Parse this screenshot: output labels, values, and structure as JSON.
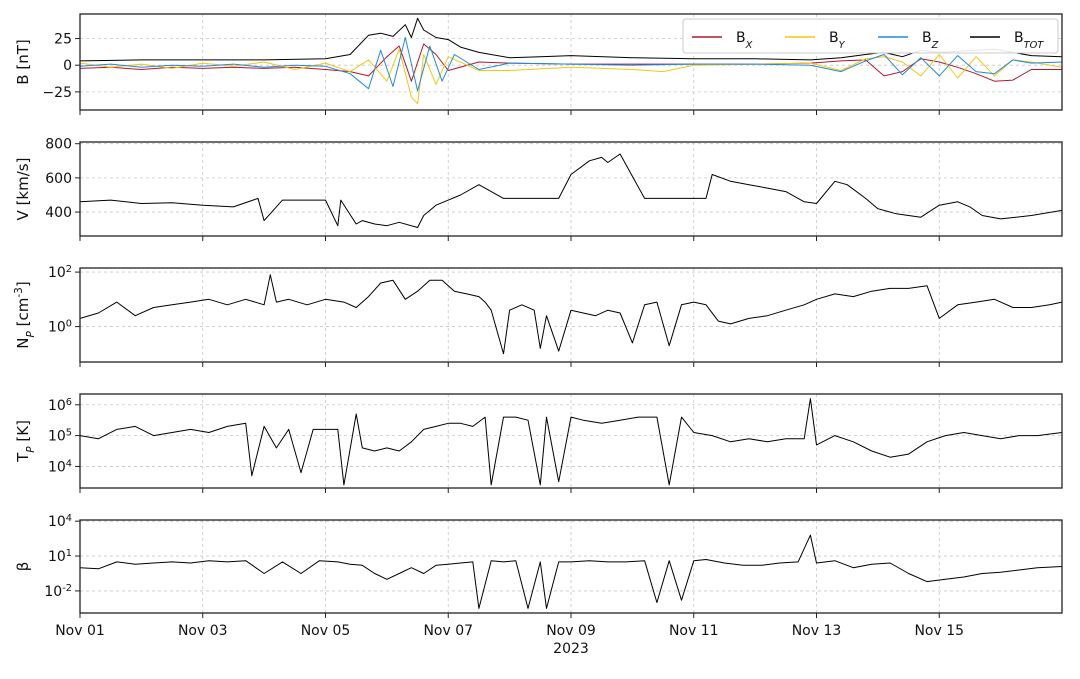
{
  "chart_data": [
    {
      "type": "line",
      "ylabel": "B [nT]",
      "ylim": [
        -42,
        48
      ],
      "yticks": [
        -25,
        0,
        25
      ],
      "ytick_labels": [
        "−25",
        "0",
        "25"
      ],
      "log": false,
      "grid": true,
      "legend": {
        "placement": "top-right",
        "entries": [
          "B_X",
          "B_Y",
          "B_Z",
          "B_TOT"
        ]
      },
      "series": [
        {
          "name": "B_X",
          "color": "#b2182b",
          "x": [
            0,
            0.5,
            1,
            1.5,
            2,
            2.5,
            3,
            3.5,
            4,
            4.4,
            4.7,
            5.0,
            5.2,
            5.4,
            5.6,
            5.8,
            6.0,
            6.5,
            7,
            8,
            9,
            10,
            11,
            11.9,
            12.4,
            12.8,
            13.1,
            13.4,
            13.7,
            14.0,
            14.3,
            14.6,
            14.9,
            15.2,
            15.5,
            16.0
          ],
          "y": [
            -3,
            -2,
            -4,
            -2,
            -3,
            -2,
            -3,
            -2,
            -4,
            -6,
            -10,
            8,
            18,
            -15,
            20,
            10,
            -5,
            3,
            2,
            1,
            1,
            1,
            1,
            2,
            4,
            5,
            -10,
            -6,
            6,
            3,
            -2,
            -8,
            -15,
            -14,
            -4,
            -4
          ]
        },
        {
          "name": "B_Y",
          "color": "#f2c80f",
          "x": [
            0,
            0.5,
            1,
            1.5,
            2,
            2.5,
            3,
            3.5,
            4,
            4.4,
            4.7,
            5.0,
            5.2,
            5.4,
            5.5,
            5.6,
            5.8,
            6.0,
            6.5,
            7,
            8,
            9,
            9.5,
            10,
            11,
            11.9,
            12.4,
            12.8,
            13.1,
            13.4,
            13.7,
            14.0,
            14.3,
            14.6,
            14.9,
            15.2,
            15.5,
            16.0
          ],
          "y": [
            2,
            -2,
            1,
            -3,
            2,
            -1,
            3,
            -4,
            2,
            -6,
            5,
            -15,
            15,
            -30,
            -36,
            10,
            -18,
            8,
            -5,
            -5,
            -2,
            -4,
            -6,
            0,
            1,
            2,
            -5,
            6,
            8,
            3,
            -10,
            10,
            -12,
            8,
            -10,
            5,
            3,
            -2
          ]
        },
        {
          "name": "B_Z",
          "color": "#1f8be0",
          "x": [
            0,
            0.5,
            1,
            1.5,
            2,
            2.5,
            3,
            3.5,
            4,
            4.4,
            4.7,
            4.9,
            5.1,
            5.3,
            5.5,
            5.7,
            5.9,
            6.1,
            6.5,
            7,
            8,
            9,
            10,
            11,
            11.9,
            12.4,
            12.8,
            13.1,
            13.4,
            13.7,
            14.0,
            14.3,
            14.6,
            14.9,
            15.2,
            15.5,
            16.0
          ],
          "y": [
            -1,
            1,
            -2,
            0,
            -1,
            1,
            -2,
            0,
            -1,
            -8,
            -22,
            14,
            -20,
            26,
            -24,
            18,
            -15,
            10,
            -4,
            2,
            1,
            0,
            1,
            1,
            0,
            -6,
            4,
            10,
            -9,
            7,
            -10,
            9,
            -6,
            -8,
            5,
            2,
            3
          ]
        },
        {
          "name": "B_TOT",
          "color": "#000000",
          "x": [
            0,
            1,
            2,
            3,
            4,
            4.4,
            4.7,
            4.9,
            5.1,
            5.3,
            5.4,
            5.5,
            5.6,
            5.8,
            6.0,
            6.2,
            6.5,
            7,
            7.5,
            8,
            9,
            10,
            11,
            11.9,
            12.4,
            12.8,
            13.1,
            13.4,
            13.7,
            14.0,
            14.3,
            14.6,
            14.9,
            15.2,
            15.5,
            16.0
          ],
          "y": [
            4,
            5,
            5,
            5,
            6,
            10,
            28,
            30,
            27,
            38,
            26,
            44,
            33,
            26,
            24,
            17,
            12,
            7,
            8,
            9,
            7,
            6,
            6,
            5,
            7,
            10,
            12,
            8,
            14,
            12,
            13,
            14,
            15,
            12,
            9,
            8
          ]
        }
      ]
    },
    {
      "type": "line",
      "ylabel": "V [km/s]",
      "ylim": [
        260,
        810
      ],
      "yticks": [
        400,
        600,
        800
      ],
      "ytick_labels": [
        "400",
        "600",
        "800"
      ],
      "log": false,
      "grid": true,
      "series": [
        {
          "name": "",
          "color": "#000000",
          "x": [
            0,
            0.5,
            1,
            1.5,
            2,
            2.5,
            2.9,
            3.0,
            3.3,
            3.5,
            4.0,
            4.2,
            4.25,
            4.5,
            4.6,
            4.8,
            5.0,
            5.2,
            5.5,
            5.6,
            5.8,
            6.0,
            6.2,
            6.5,
            6.9,
            7.0,
            7.3,
            7.6,
            7.8,
            8.0,
            8.3,
            8.5,
            8.6,
            8.8,
            9.2,
            9.6,
            10.0,
            10.2,
            10.3,
            10.6,
            10.9,
            11.2,
            11.5,
            11.8,
            12.0,
            12.3,
            12.5,
            12.8,
            13.0,
            13.3,
            13.7,
            14.0,
            14.3,
            14.5,
            14.7,
            15.0,
            15.5,
            16.0
          ],
          "y": [
            460,
            470,
            450,
            455,
            440,
            430,
            480,
            350,
            470,
            470,
            470,
            320,
            470,
            330,
            350,
            330,
            320,
            340,
            310,
            380,
            440,
            470,
            500,
            560,
            480,
            480,
            480,
            480,
            480,
            620,
            700,
            720,
            690,
            740,
            480,
            480,
            480,
            480,
            620,
            580,
            560,
            540,
            520,
            460,
            450,
            580,
            560,
            480,
            420,
            390,
            370,
            440,
            460,
            430,
            380,
            360,
            380,
            410
          ]
        }
      ]
    },
    {
      "type": "line",
      "ylabel": "N_P [cm^-3]",
      "ylim": [
        -1.3,
        2.15
      ],
      "log": true,
      "yticks": [
        0,
        2
      ],
      "ytick_labels": [
        "10^0",
        "10^2"
      ],
      "grid": true,
      "series": [
        {
          "name": "",
          "color": "#000000",
          "x": [
            0,
            0.3,
            0.6,
            0.9,
            1.2,
            1.5,
            1.8,
            2.1,
            2.4,
            2.7,
            3.0,
            3.1,
            3.2,
            3.4,
            3.7,
            4.0,
            4.3,
            4.5,
            4.7,
            4.9,
            5.1,
            5.3,
            5.5,
            5.7,
            5.9,
            6.1,
            6.3,
            6.5,
            6.6,
            6.7,
            6.9,
            7.0,
            7.2,
            7.4,
            7.5,
            7.6,
            7.8,
            8.0,
            8.2,
            8.4,
            8.6,
            8.8,
            9.0,
            9.2,
            9.4,
            9.6,
            9.8,
            10.0,
            10.2,
            10.4,
            10.6,
            10.9,
            11.2,
            11.5,
            11.8,
            12.0,
            12.3,
            12.6,
            12.9,
            13.2,
            13.5,
            13.8,
            14.0,
            14.3,
            14.6,
            14.9,
            15.2,
            15.5,
            15.8,
            16.0
          ],
          "y": [
            0.3,
            0.5,
            0.9,
            0.4,
            0.7,
            0.8,
            0.9,
            1.0,
            0.8,
            1.0,
            0.8,
            1.9,
            0.9,
            1.0,
            0.8,
            1.0,
            0.9,
            0.7,
            1.1,
            1.6,
            1.7,
            1.0,
            1.3,
            1.7,
            1.7,
            1.3,
            1.2,
            1.1,
            0.9,
            0.6,
            -1.0,
            0.6,
            0.8,
            0.6,
            -0.8,
            0.4,
            -0.9,
            0.6,
            0.5,
            0.4,
            0.6,
            0.5,
            -0.6,
            0.8,
            0.9,
            -0.7,
            0.8,
            0.9,
            0.8,
            0.2,
            0.1,
            0.3,
            0.4,
            0.6,
            0.8,
            1.0,
            1.2,
            1.1,
            1.3,
            1.4,
            1.4,
            1.5,
            0.3,
            0.8,
            0.9,
            1.0,
            0.7,
            0.7,
            0.8,
            0.9
          ]
        }
      ]
    },
    {
      "type": "line",
      "ylabel": "T_P [K]",
      "ylim": [
        3.3,
        6.35
      ],
      "log": true,
      "yticks": [
        4,
        5,
        6
      ],
      "ytick_labels": [
        "10^4",
        "10^5",
        "10^6"
      ],
      "grid": true,
      "series": [
        {
          "name": "",
          "color": "#000000",
          "x": [
            0,
            0.3,
            0.6,
            0.9,
            1.2,
            1.5,
            1.8,
            2.1,
            2.4,
            2.7,
            2.8,
            3.0,
            3.2,
            3.4,
            3.6,
            3.8,
            4.0,
            4.2,
            4.3,
            4.5,
            4.6,
            4.8,
            5.0,
            5.2,
            5.4,
            5.6,
            5.8,
            6.0,
            6.2,
            6.4,
            6.6,
            6.7,
            6.9,
            7.1,
            7.3,
            7.5,
            7.6,
            7.8,
            8.0,
            8.2,
            8.5,
            8.8,
            9.1,
            9.4,
            9.6,
            9.8,
            10.0,
            10.3,
            10.6,
            10.9,
            11.2,
            11.5,
            11.8,
            11.9,
            12.0,
            12.3,
            12.6,
            12.9,
            13.2,
            13.5,
            13.8,
            14.1,
            14.4,
            14.7,
            15.0,
            15.3,
            15.6,
            16.0
          ],
          "y": [
            5.0,
            4.9,
            5.2,
            5.3,
            5.0,
            5.1,
            5.2,
            5.1,
            5.3,
            5.4,
            3.7,
            5.3,
            4.6,
            5.2,
            3.8,
            5.2,
            5.2,
            5.2,
            3.4,
            5.7,
            4.6,
            4.5,
            4.6,
            4.5,
            4.8,
            5.2,
            5.3,
            5.4,
            5.4,
            5.3,
            5.6,
            3.4,
            5.6,
            5.6,
            5.5,
            3.4,
            5.6,
            3.5,
            5.6,
            5.5,
            5.4,
            5.5,
            5.6,
            5.6,
            3.4,
            5.6,
            5.1,
            5.0,
            4.8,
            4.9,
            4.8,
            4.9,
            4.9,
            6.2,
            4.7,
            5.0,
            4.8,
            4.5,
            4.3,
            4.4,
            4.8,
            5.0,
            5.1,
            5.0,
            4.9,
            5.0,
            5.0,
            5.1
          ]
        }
      ]
    },
    {
      "type": "line",
      "ylabel": "β",
      "ylim": [
        -3.9,
        4.1
      ],
      "log": true,
      "yticks": [
        -2,
        1,
        4
      ],
      "ytick_labels": [
        "10^-2",
        "10^1",
        "10^4"
      ],
      "grid": true,
      "series": [
        {
          "name": "",
          "color": "#000000",
          "x": [
            0,
            0.3,
            0.6,
            0.9,
            1.2,
            1.5,
            1.8,
            2.1,
            2.4,
            2.7,
            3.0,
            3.3,
            3.6,
            3.9,
            4.2,
            4.4,
            4.6,
            4.8,
            5.0,
            5.2,
            5.4,
            5.6,
            5.8,
            6.0,
            6.2,
            6.4,
            6.5,
            6.7,
            6.9,
            7.1,
            7.3,
            7.5,
            7.6,
            7.8,
            8.0,
            8.3,
            8.6,
            8.9,
            9.2,
            9.4,
            9.6,
            9.8,
            10.0,
            10.2,
            10.5,
            10.8,
            11.1,
            11.4,
            11.7,
            11.9,
            12.0,
            12.3,
            12.6,
            12.9,
            13.2,
            13.5,
            13.8,
            14.1,
            14.4,
            14.7,
            15.0,
            15.3,
            15.6,
            16.0
          ],
          "y": [
            0.0,
            -0.1,
            0.5,
            0.3,
            0.4,
            0.5,
            0.4,
            0.6,
            0.5,
            0.6,
            -0.5,
            0.5,
            -0.5,
            0.6,
            0.5,
            0.3,
            0.2,
            -0.5,
            -1.0,
            -0.5,
            0.0,
            -0.5,
            0.2,
            0.3,
            0.4,
            0.5,
            -3.5,
            0.6,
            0.5,
            0.6,
            -3.5,
            0.5,
            -3.5,
            0.5,
            0.5,
            0.6,
            0.5,
            0.5,
            0.6,
            -3.0,
            0.6,
            -2.8,
            0.6,
            0.7,
            0.4,
            0.2,
            0.2,
            0.4,
            0.5,
            2.8,
            0.4,
            0.6,
            0.0,
            0.3,
            0.4,
            -0.5,
            -1.2,
            -1.0,
            -0.8,
            -0.5,
            -0.4,
            -0.2,
            0.0,
            0.1
          ]
        }
      ]
    }
  ],
  "xaxis": {
    "xlim": [
      0,
      16
    ],
    "ticks": [
      0,
      2,
      4,
      6,
      8,
      10,
      12,
      14
    ],
    "tick_labels": [
      "Nov 01",
      "Nov 03",
      "Nov 05",
      "Nov 07",
      "Nov 09",
      "Nov 11",
      "Nov 13",
      "Nov 15"
    ],
    "year_label": "2023"
  }
}
